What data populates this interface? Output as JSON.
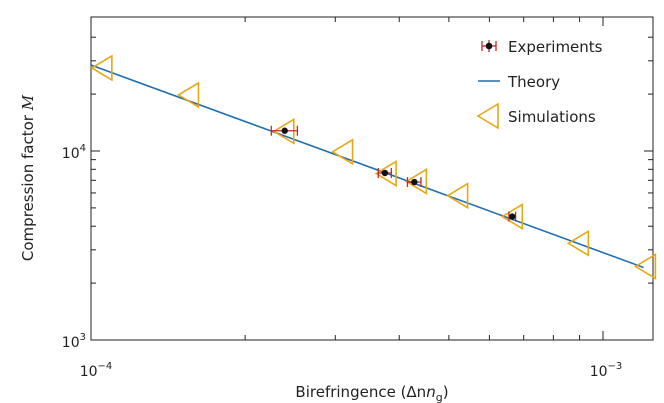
{
  "chart_data": {
    "type": "scatter",
    "xlabel": "Birefringence (Δn",
    "xlabel_sub": "g",
    "xlabel_close": ")",
    "ylabel": "Compression factor ",
    "ylabel_var": "M",
    "x_scale": "log",
    "y_scale": "log",
    "xlim": [
      0.0001,
      0.0012
    ],
    "ylim": [
      1000,
      50000
    ],
    "x_tick_labels": [
      {
        "value": 0.0001,
        "label": "10",
        "exp": "−4"
      },
      {
        "value": 0.001,
        "label": "10",
        "exp": "−3"
      }
    ],
    "y_tick_labels": [
      {
        "value": 1000,
        "label": "10",
        "exp": "3"
      },
      {
        "value": 10000,
        "label": "10",
        "exp": "4"
      }
    ],
    "legend_position": "top-right",
    "colors": {
      "experiments": "#c62828",
      "theory": "#1f6fb2",
      "simulations": "#e6a817"
    },
    "series": [
      {
        "name": "Experiments",
        "kind": "errorbar",
        "points": [
          {
            "x": 0.000239,
            "y": 12800,
            "xerr": 1.4e-05
          },
          {
            "x": 0.000375,
            "y": 7650,
            "xerr": 1.1e-05
          },
          {
            "x": 0.000428,
            "y": 6850,
            "xerr": 1.3e-05
          },
          {
            "x": 0.000665,
            "y": 4500,
            "xerr": 1e-05
          }
        ]
      },
      {
        "name": "Theory",
        "kind": "line",
        "x": [
          0.0001,
          0.0012
        ],
        "y": [
          28500,
          2420
        ]
      },
      {
        "name": "Simulations",
        "kind": "triangle-left",
        "points": [
          {
            "x": 0.000105,
            "y": 27500
          },
          {
            "x": 0.000155,
            "y": 19800
          },
          {
            "x": 0.000238,
            "y": 12700
          },
          {
            "x": 0.00031,
            "y": 9900
          },
          {
            "x": 0.000377,
            "y": 7600
          },
          {
            "x": 0.000432,
            "y": 6900
          },
          {
            "x": 0.00052,
            "y": 5800
          },
          {
            "x": 0.000665,
            "y": 4500
          },
          {
            "x": 0.000895,
            "y": 3250
          },
          {
            "x": 0.00121,
            "y": 2450
          }
        ]
      }
    ]
  }
}
